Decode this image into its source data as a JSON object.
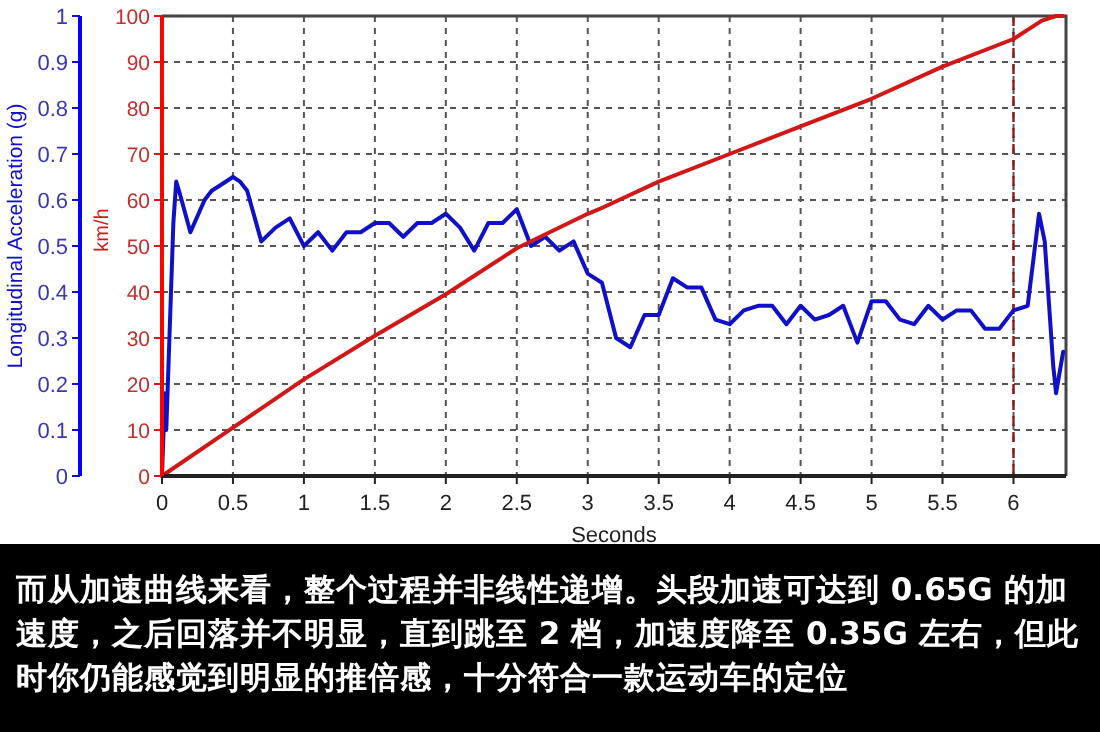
{
  "chart_data": {
    "type": "line",
    "xlabel": "Seconds",
    "ylabel": "Longitudinal Acceleration (g)",
    "y2label": "km/h",
    "xlim": [
      0,
      6.37
    ],
    "ylim": [
      0,
      1
    ],
    "y2lim": [
      0,
      100
    ],
    "xticks": [
      0,
      0.5,
      1,
      1.5,
      2,
      2.5,
      3,
      3.5,
      4,
      4.5,
      5,
      5.5,
      6
    ],
    "yticks": [
      0,
      0.1,
      0.2,
      0.3,
      0.4,
      0.5,
      0.6,
      0.7,
      0.8,
      0.9,
      1
    ],
    "y2ticks": [
      0,
      10,
      20,
      30,
      40,
      50,
      60,
      70,
      80,
      90,
      100
    ],
    "grid": true,
    "series": [
      {
        "color": "#1010c8",
        "axis": "y",
        "x": [
          0,
          0.02,
          0.03,
          0.05,
          0.07,
          0.08,
          0.1,
          0.12,
          0.2,
          0.3,
          0.35,
          0.4,
          0.5,
          0.55,
          0.6,
          0.7,
          0.8,
          0.9,
          1.0,
          1.1,
          1.2,
          1.3,
          1.4,
          1.5,
          1.6,
          1.7,
          1.8,
          1.9,
          2.0,
          2.1,
          2.2,
          2.3,
          2.4,
          2.5,
          2.6,
          2.7,
          2.8,
          2.9,
          3.0,
          3.1,
          3.2,
          3.3,
          3.4,
          3.5,
          3.6,
          3.7,
          3.8,
          3.9,
          4.0,
          4.1,
          4.2,
          4.3,
          4.4,
          4.5,
          4.6,
          4.7,
          4.8,
          4.9,
          5.0,
          5.1,
          5.2,
          5.3,
          5.4,
          5.5,
          5.6,
          5.7,
          5.8,
          5.9,
          6.0,
          6.1,
          6.18,
          6.22,
          6.28,
          6.3,
          6.35
        ],
        "values": [
          0,
          0.18,
          0.1,
          0.28,
          0.46,
          0.55,
          0.64,
          0.62,
          0.53,
          0.6,
          0.62,
          0.63,
          0.65,
          0.64,
          0.62,
          0.51,
          0.54,
          0.56,
          0.5,
          0.53,
          0.49,
          0.53,
          0.53,
          0.55,
          0.55,
          0.52,
          0.55,
          0.55,
          0.57,
          0.54,
          0.49,
          0.55,
          0.55,
          0.58,
          0.5,
          0.52,
          0.49,
          0.51,
          0.44,
          0.42,
          0.3,
          0.28,
          0.35,
          0.35,
          0.43,
          0.41,
          0.41,
          0.34,
          0.33,
          0.36,
          0.37,
          0.37,
          0.33,
          0.37,
          0.34,
          0.35,
          0.37,
          0.29,
          0.38,
          0.38,
          0.34,
          0.33,
          0.37,
          0.34,
          0.36,
          0.36,
          0.32,
          0.32,
          0.36,
          0.37,
          0.57,
          0.51,
          0.24,
          0.18,
          0.27
        ]
      },
      {
        "color": "#d01818",
        "axis": "y2",
        "x": [
          0,
          0.5,
          1,
          1.5,
          2,
          2.5,
          3,
          3.08,
          3.5,
          4,
          4.5,
          5,
          5.5,
          6,
          6.2,
          6.3,
          6.35
        ],
        "values": [
          0,
          10.5,
          21,
          30.5,
          39.5,
          49.5,
          57,
          58,
          64,
          70,
          76,
          82,
          89,
          95,
          99,
          100,
          100
        ]
      }
    ],
    "ref_lines": [
      {
        "axis": "x",
        "value": 6,
        "color": "#8b1a1a",
        "line_style": "dashed"
      }
    ],
    "annotations": [
      "而从加速曲线来看，整个过程并非线性递增。头段加速可达到 0.65G 的加速度，之后回落并不明显，直到跳至 2 档，加速度降至 0.35G 左右，但此时你仍能感觉到明显的推倍感，十分符合一款运动车的定位"
    ]
  }
}
